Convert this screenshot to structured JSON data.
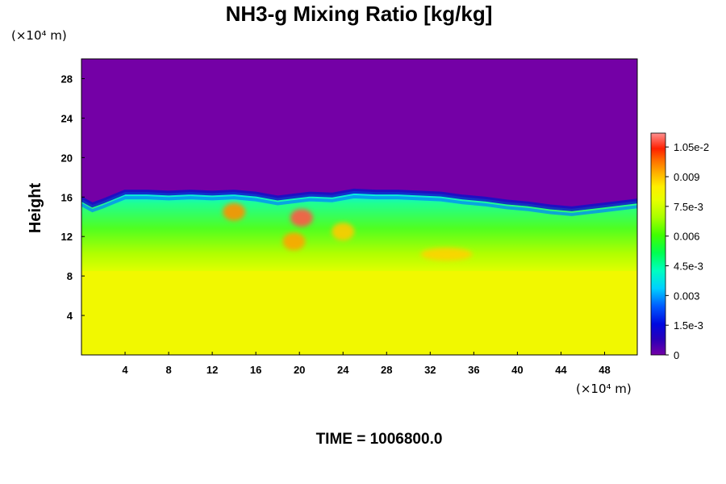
{
  "chart_data": {
    "type": "heatmap",
    "title": "NH3-g Mixing Ratio [kg/kg]",
    "ylabel": "Height",
    "x_unit": "(×10⁴ m)",
    "y_unit": "(×10⁴ m)",
    "time_label": "TIME = 1006800.0",
    "xlim": [
      0,
      51
    ],
    "ylim": [
      0,
      30
    ],
    "x_ticks": [
      {
        "value": 4,
        "label": "4"
      },
      {
        "value": 8,
        "label": "8"
      },
      {
        "value": 12,
        "label": "12"
      },
      {
        "value": 16,
        "label": "16"
      },
      {
        "value": 20,
        "label": "20"
      },
      {
        "value": 24,
        "label": "24"
      },
      {
        "value": 28,
        "label": "28"
      },
      {
        "value": 32,
        "label": "32"
      },
      {
        "value": 36,
        "label": "36"
      },
      {
        "value": 40,
        "label": "40"
      },
      {
        "value": 44,
        "label": "44"
      },
      {
        "value": 48,
        "label": "48"
      }
    ],
    "y_ticks": [
      {
        "value": 4,
        "label": "4"
      },
      {
        "value": 8,
        "label": "8"
      },
      {
        "value": 12,
        "label": "12"
      },
      {
        "value": 16,
        "label": "16"
      },
      {
        "value": 20,
        "label": "20"
      },
      {
        "value": 24,
        "label": "24"
      },
      {
        "value": 28,
        "label": "28"
      }
    ],
    "colorbar": {
      "min": 0,
      "max": 0.0112,
      "ticks": [
        {
          "value": 0,
          "label": "0"
        },
        {
          "value": 0.0015,
          "label": "1.5e-3"
        },
        {
          "value": 0.003,
          "label": "0.003"
        },
        {
          "value": 0.0045,
          "label": "4.5e-3"
        },
        {
          "value": 0.006,
          "label": "0.006"
        },
        {
          "value": 0.0075,
          "label": "7.5e-3"
        },
        {
          "value": 0.009,
          "label": "0.009"
        },
        {
          "value": 0.0105,
          "label": "1.05e-2"
        }
      ]
    },
    "approximate_field": {
      "upper_layer_value": 0,
      "cloud_top_height": [
        15.8,
        15.2,
        15.6,
        16.5,
        16.5,
        16.4,
        16.5,
        16.4,
        16.5,
        16.3,
        15.9,
        16.1,
        16.3,
        16.2,
        16.6,
        16.5,
        16.5,
        16.4,
        16.3,
        16.0,
        15.8,
        15.5,
        15.3,
        15.0,
        14.8,
        15.2,
        15.6
      ],
      "cloud_top_x": [
        0,
        1,
        2,
        4,
        6,
        8,
        10,
        12,
        14,
        16,
        18,
        19.5,
        21,
        23,
        25,
        27,
        29,
        31,
        33,
        35,
        37,
        39,
        41,
        43,
        45,
        48,
        51
      ],
      "mixed_layer_value": 0.006,
      "mixed_layer_range": [
        9.5,
        15.5
      ],
      "lower_layer_value": 0.0081,
      "lower_layer_top": 8.5,
      "hotspots": [
        {
          "x": 20.2,
          "y": 13.9,
          "value": 0.0108
        },
        {
          "x": 14,
          "y": 14.5,
          "value": 0.0095
        },
        {
          "x": 19.5,
          "y": 11.5,
          "value": 0.0093
        },
        {
          "x": 33.5,
          "y": 10.2,
          "value": 0.0088
        },
        {
          "x": 24,
          "y": 12.5,
          "value": 0.0089
        }
      ]
    }
  }
}
